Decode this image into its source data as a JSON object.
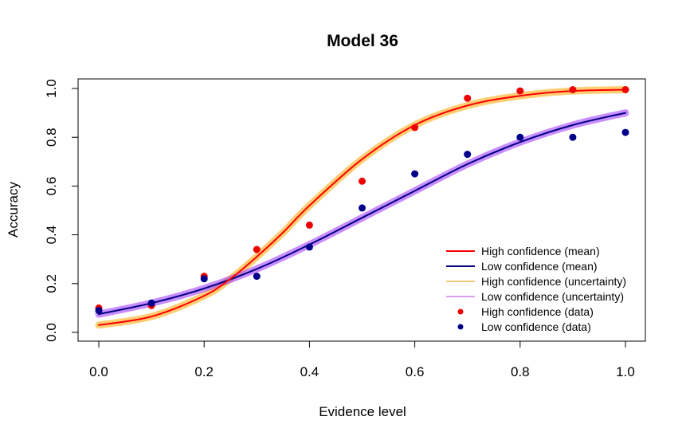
{
  "chart_data": {
    "type": "line",
    "title": "Model 36",
    "xlabel": "Evidence level",
    "ylabel": "Accuracy",
    "xlim": [
      0.0,
      1.0
    ],
    "ylim": [
      0.0,
      1.0
    ],
    "xticks": [
      "0.0",
      "0.2",
      "0.4",
      "0.6",
      "0.8",
      "1.0"
    ],
    "yticks": [
      "0.0",
      "0.2",
      "0.4",
      "0.6",
      "0.8",
      "1.0"
    ],
    "grid": false,
    "legend_position": "bottom-right",
    "legend": [
      {
        "label": "High confidence (mean)",
        "kind": "line",
        "color": "#ff0000"
      },
      {
        "label": "Low confidence (mean)",
        "kind": "line",
        "color": "#000080"
      },
      {
        "label": "High confidence (uncertainty)",
        "kind": "line",
        "color": "#f5c878"
      },
      {
        "label": "Low confidence (uncertainty)",
        "kind": "line",
        "color": "#d8a0f0"
      },
      {
        "label": "High confidence (data)",
        "kind": "point",
        "color": "#ee0000"
      },
      {
        "label": "Low confidence (data)",
        "kind": "point",
        "color": "#00008b"
      }
    ],
    "curves": {
      "high": {
        "color": "#ff0000",
        "band_color": "#ffa500",
        "x": [
          0.0,
          0.1,
          0.2,
          0.25,
          0.3,
          0.35,
          0.4,
          0.5,
          0.6,
          0.7,
          0.8,
          0.9,
          1.0
        ],
        "y": [
          0.03,
          0.065,
          0.15,
          0.22,
          0.31,
          0.41,
          0.52,
          0.71,
          0.85,
          0.93,
          0.97,
          0.99,
          0.995
        ]
      },
      "low": {
        "color": "#000080",
        "band_color": "#9b30ff",
        "x": [
          0.0,
          0.1,
          0.2,
          0.3,
          0.4,
          0.5,
          0.6,
          0.7,
          0.8,
          0.9,
          1.0
        ],
        "y": [
          0.075,
          0.12,
          0.18,
          0.26,
          0.36,
          0.47,
          0.58,
          0.69,
          0.78,
          0.85,
          0.9
        ]
      }
    },
    "series": [
      {
        "name": "High confidence (data)",
        "color": "#ee0000",
        "x": [
          0.0,
          0.1,
          0.2,
          0.3,
          0.4,
          0.5,
          0.6,
          0.7,
          0.8,
          0.9,
          1.0
        ],
        "y": [
          0.1,
          0.11,
          0.23,
          0.34,
          0.44,
          0.62,
          0.84,
          0.96,
          0.99,
          0.995,
          0.995
        ]
      },
      {
        "name": "Low confidence (data)",
        "color": "#00008b",
        "x": [
          0.0,
          0.1,
          0.2,
          0.3,
          0.4,
          0.5,
          0.6,
          0.7,
          0.8,
          0.9,
          1.0
        ],
        "y": [
          0.09,
          0.12,
          0.22,
          0.23,
          0.35,
          0.51,
          0.65,
          0.73,
          0.8,
          0.8,
          0.82
        ]
      }
    ]
  }
}
